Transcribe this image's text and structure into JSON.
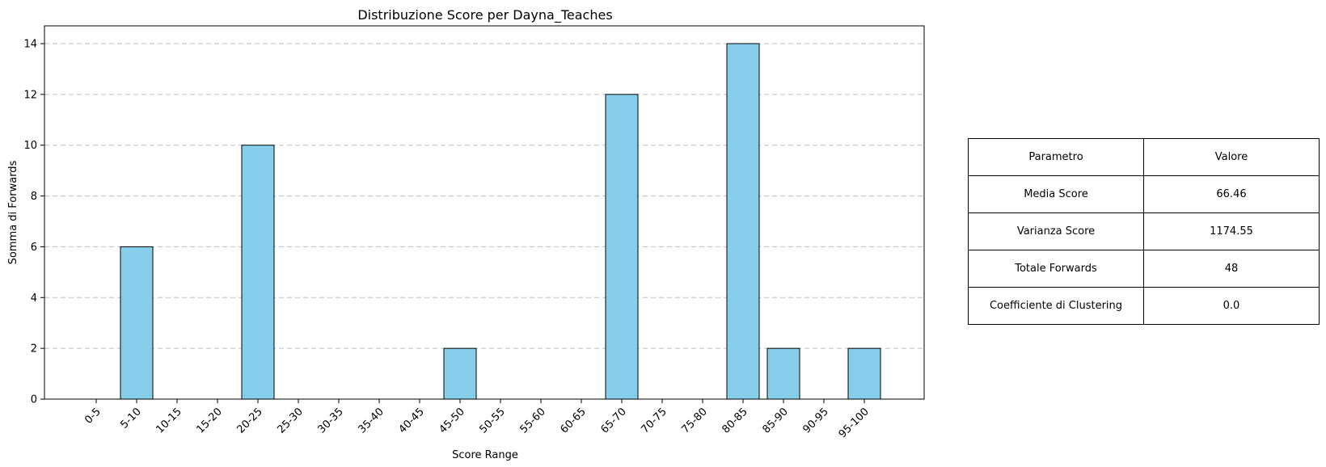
{
  "chart_data": {
    "type": "bar",
    "title": "Distribuzione Score per Dayna_Teaches",
    "xlabel": "Score Range",
    "ylabel": "Somma di Forwards",
    "categories": [
      "0-5",
      "5-10",
      "10-15",
      "15-20",
      "20-25",
      "25-30",
      "30-35",
      "35-40",
      "40-45",
      "45-50",
      "50-55",
      "55-60",
      "60-65",
      "65-70",
      "70-75",
      "75-80",
      "80-85",
      "85-90",
      "90-95",
      "95-100"
    ],
    "values": [
      0,
      6,
      0,
      0,
      10,
      0,
      0,
      0,
      0,
      2,
      0,
      0,
      0,
      12,
      0,
      0,
      14,
      2,
      0,
      2
    ],
    "ylim": [
      0,
      14.7
    ],
    "yticks": [
      0,
      2,
      4,
      6,
      8,
      10,
      12,
      14
    ],
    "grid": "y-dashed",
    "colors": {
      "bar_fill": "#87CEEB",
      "bar_edge": "#000000",
      "grid": "#bfbfbf"
    }
  },
  "table": {
    "header": [
      "Parametro",
      "Valore"
    ],
    "rows": [
      [
        "Media Score",
        "66.46"
      ],
      [
        "Varianza Score",
        "1174.55"
      ],
      [
        "Totale Forwards",
        "48"
      ],
      [
        "Coefficiente di Clustering",
        "0.0"
      ]
    ]
  }
}
